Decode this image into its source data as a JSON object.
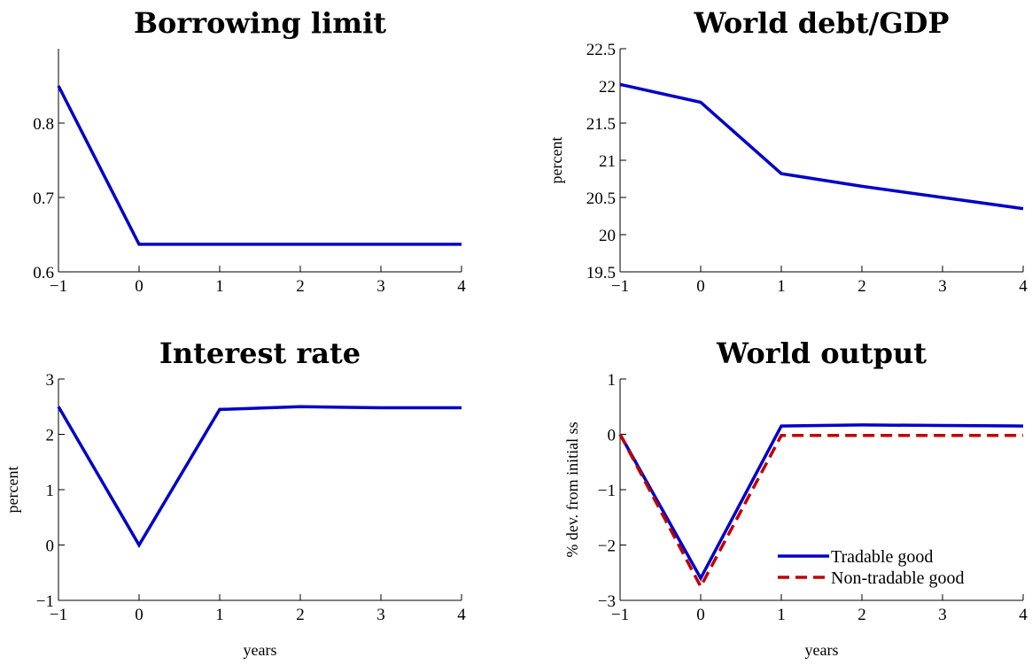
{
  "chart_data": [
    {
      "type": "line",
      "title": "Borrowing limit",
      "xlabel": "",
      "ylabel": "",
      "xlim": [
        -1,
        4
      ],
      "ylim": [
        0.6,
        0.9
      ],
      "xticks": [
        -1,
        0,
        1,
        2,
        3,
        4
      ],
      "xtick_labels": [
        "−1",
        "0",
        "1",
        "2",
        "3",
        "4"
      ],
      "yticks": [
        0.6,
        0.7,
        0.8
      ],
      "ytick_labels": [
        "0.6",
        "0.7",
        "0.8"
      ],
      "x": [
        -1,
        0,
        1,
        2,
        3,
        4
      ],
      "series": [
        {
          "values": [
            0.85,
            0.637,
            0.637,
            0.637,
            0.637,
            0.637
          ],
          "color": "#0000c8",
          "style": "solid"
        }
      ],
      "grid": false
    },
    {
      "type": "line",
      "title": "World debt/GDP",
      "xlabel": "",
      "ylabel": "percent",
      "xlim": [
        -1,
        4
      ],
      "ylim": [
        19.5,
        22.5
      ],
      "xticks": [
        -1,
        0,
        1,
        2,
        3,
        4
      ],
      "xtick_labels": [
        "−1",
        "0",
        "1",
        "2",
        "3",
        "4"
      ],
      "yticks": [
        19.5,
        20,
        20.5,
        21,
        21.5,
        22,
        22.5
      ],
      "ytick_labels": [
        "19.5",
        "20",
        "20.5",
        "21",
        "21.5",
        "22",
        "22.5"
      ],
      "x": [
        -1,
        0,
        1,
        2,
        3,
        4
      ],
      "series": [
        {
          "values": [
            22.02,
            21.78,
            20.82,
            20.65,
            20.5,
            20.35
          ],
          "color": "#0000c8",
          "style": "solid"
        }
      ],
      "grid": false
    },
    {
      "type": "line",
      "title": "Interest rate",
      "xlabel": "years",
      "ylabel": "percent",
      "xlim": [
        -1,
        4
      ],
      "ylim": [
        -1,
        3
      ],
      "xticks": [
        -1,
        0,
        1,
        2,
        3,
        4
      ],
      "xtick_labels": [
        "−1",
        "0",
        "1",
        "2",
        "3",
        "4"
      ],
      "yticks": [
        -1,
        0,
        1,
        2,
        3
      ],
      "ytick_labels": [
        "−1",
        "0",
        "1",
        "2",
        "3"
      ],
      "x": [
        -1,
        0,
        1,
        2,
        3,
        4
      ],
      "series": [
        {
          "values": [
            2.5,
            0.0,
            2.45,
            2.5,
            2.48,
            2.48
          ],
          "color": "#0000c8",
          "style": "solid"
        }
      ],
      "grid": false
    },
    {
      "type": "line",
      "title": "World output",
      "xlabel": "years",
      "ylabel": "% dev. from initial ss",
      "xlim": [
        -1,
        4
      ],
      "ylim": [
        -3,
        1
      ],
      "xticks": [
        -1,
        0,
        1,
        2,
        3,
        4
      ],
      "xtick_labels": [
        "−1",
        "0",
        "1",
        "2",
        "3",
        "4"
      ],
      "yticks": [
        -3,
        -2,
        -1,
        0,
        1
      ],
      "ytick_labels": [
        "−3",
        "−2",
        "−1",
        "0",
        "1"
      ],
      "x": [
        -1,
        0,
        1,
        2,
        3,
        4
      ],
      "series": [
        {
          "name": "Tradable good",
          "values": [
            0.0,
            -2.6,
            0.15,
            0.17,
            0.16,
            0.15
          ],
          "color": "#0000c8",
          "style": "solid"
        },
        {
          "name": "Non-tradable good",
          "values": [
            0.0,
            -2.75,
            -0.02,
            -0.02,
            -0.02,
            -0.02
          ],
          "color": "#c00000",
          "style": "dashed"
        }
      ],
      "legend": "bottom-right",
      "grid": false
    }
  ]
}
